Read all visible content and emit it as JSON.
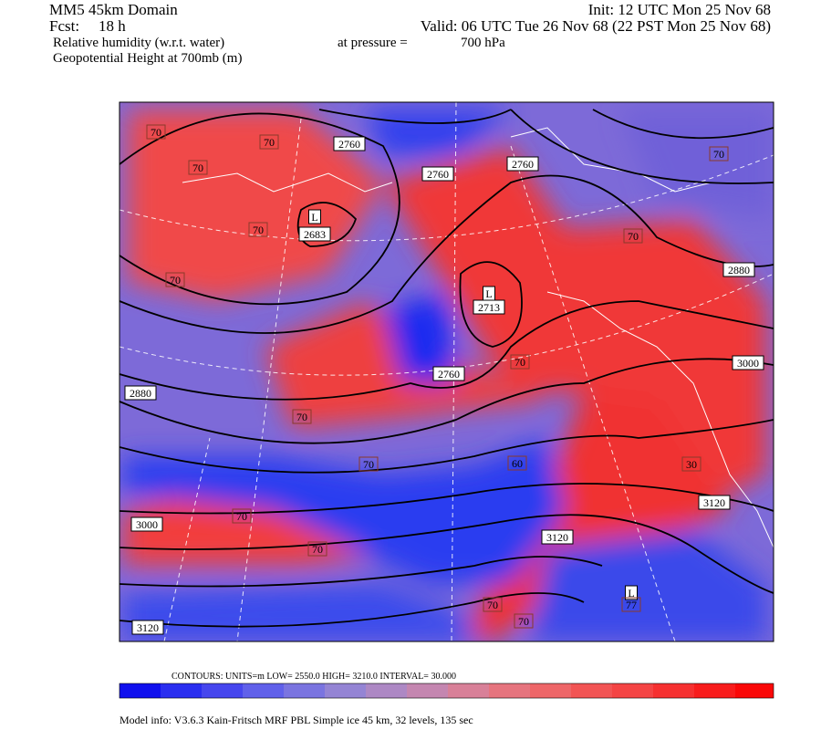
{
  "header": {
    "domain": "MM5 45km Domain",
    "init": "Init: 12 UTC Mon 25 Nov 68",
    "fcst_label": "Fcst:",
    "fcst": "18 h",
    "valid": "Valid: 06 UTC Tue 26 Nov 68 (22 PST Mon 25 Nov 68)",
    "field1": "Relative humidity (w.r.t. water)",
    "pressure_label": "at pressure =",
    "pressure": "700 hPa",
    "field2": "Geopotential Height at 700mb (m)"
  },
  "map": {
    "height_labels": [
      "2760",
      "2760",
      "2760",
      "L",
      "2683",
      "L",
      "2713",
      "2760",
      "2880",
      "3000",
      "2880",
      "3120",
      "3000",
      "3120",
      "L",
      "3120"
    ],
    "rh_labels": [
      "70",
      "70",
      "70",
      "70",
      "70",
      "70",
      "70",
      "70",
      "70",
      "60",
      "70",
      "30",
      "70",
      "70",
      "70",
      "70",
      "77"
    ]
  },
  "contour_info": "CONTOURS:  UNITS=m  LOW=   2550.0     HIGH=  3210.0     INTERVAL=   30.000",
  "footer": "Model info: V3.6.3 Kain-Fritsch MRF PBL     Simple ice    45 km,  32 levels,  135 sec"
}
